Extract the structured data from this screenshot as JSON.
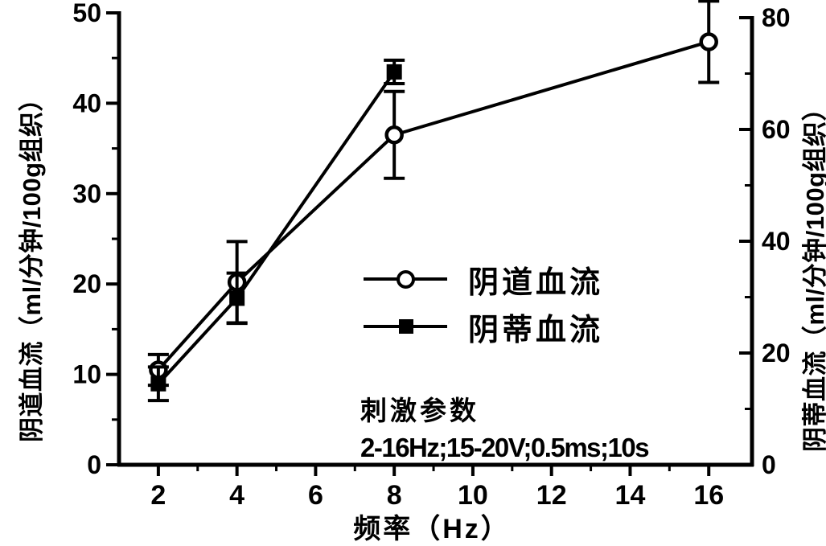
{
  "figure": {
    "background_color": "#ffffff",
    "ink_color": "#000000"
  },
  "chart_data": {
    "type": "line",
    "title": "",
    "xlabel": "频率（Hz）",
    "ylabel_left": "阴道血流（ml/分钟/100g组织）",
    "ylabel_right": "阴蒂血流（ml/分钟/100g组织）",
    "xlim": [
      1,
      17.1
    ],
    "x_ticks": [
      2,
      4,
      6,
      8,
      10,
      12,
      14,
      16
    ],
    "x_minor_ticks": [
      3,
      5,
      7,
      9,
      11,
      13,
      15
    ],
    "left_ylim": [
      0,
      50
    ],
    "left_ticks": [
      0,
      10,
      20,
      30,
      40,
      50
    ],
    "left_minor_ticks": [
      5,
      15,
      25,
      35,
      45
    ],
    "right_ylim": [
      0,
      80
    ],
    "right_ticks": [
      0,
      20,
      40,
      60,
      80
    ],
    "right_minor_ticks": [
      10,
      30,
      50,
      70
    ],
    "grid": false,
    "legend_position": "center-right",
    "series": [
      {
        "name": "阴道血流",
        "axis": "left",
        "marker": "circle-open",
        "x": [
          2,
          4,
          8,
          16
        ],
        "y": [
          10.5,
          20.2,
          36.5,
          46.8
        ],
        "yerr": [
          1.7,
          4.5,
          4.8,
          4.5
        ]
      },
      {
        "name": "阴蒂血流",
        "axis": "right",
        "marker": "square-filled",
        "x": [
          2,
          4,
          8
        ],
        "y": [
          14.5,
          29.8,
          70.3
        ],
        "yerr": [
          3.0,
          4.5,
          2.1
        ]
      }
    ],
    "legend": {
      "items": [
        {
          "label": "阴道血流",
          "marker": "circle-open"
        },
        {
          "label": "阴蒂血流",
          "marker": "square-filled"
        }
      ]
    },
    "annotation": {
      "line1": "刺激参数",
      "line2": "2-16Hz;15-20V;0.5ms;10s"
    }
  }
}
